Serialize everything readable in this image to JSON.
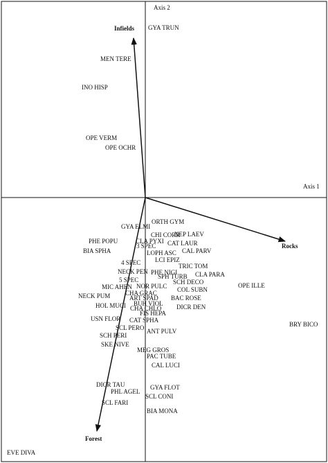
{
  "chart_data": {
    "type": "biplot",
    "x_label": "Axis 1",
    "y_label": "Axis 2",
    "xlim": [
      -2.08,
      2.62
    ],
    "ylim": [
      -3.81,
      2.83
    ],
    "labels": [
      "GYA TRUN",
      "MEN TERE",
      "INO HISP",
      "OPE VERM",
      "OPE OCHR",
      "ORTH GYM",
      "GYA ELMI",
      "CHI CORR",
      "NEP LAEV",
      "PHE POPU",
      "CLA PYXI",
      "CAT LAUR",
      "3 SPEC",
      "BIA SPHA",
      "CAL PARV",
      "LOPH ASC",
      "LCI EPIZ",
      "4 SPEC",
      "TRIC TOM",
      "NECK PEN",
      "PHE NIGI",
      "CLA PARA",
      "SPH TURB",
      "5 SPEC",
      "SCH DECO",
      "OPE ILLE",
      "MIC AHEN",
      "NOR PULC",
      "COL SUBN",
      "CHA GRAC",
      "NECK PUM",
      "ART SPAD",
      "BAC ROSE",
      "HOL MUCI",
      "BUH VIOL",
      "CHA CHLO",
      "DICR DEN",
      "FIS HEPA",
      "USN FLOR",
      "CAT SPHA",
      "SCL PERO",
      "ANT PULV",
      "BRY BICO",
      "SCH PERI",
      "SKE NIVE",
      "MEG GROS",
      "PAC TUBE",
      "CAL LUCI",
      "DICR TAU",
      "GYA FLOT",
      "PHL AGEL",
      "SCL CONI",
      "SCL FARI",
      "BIA MONA",
      "EVE DIVA"
    ],
    "x": [
      0.04,
      -0.65,
      -0.92,
      -0.86,
      -0.58,
      0.09,
      -0.35,
      0.08,
      0.42,
      -0.82,
      -0.14,
      0.32,
      -0.13,
      -0.9,
      0.53,
      0.02,
      0.14,
      -0.35,
      0.48,
      -0.4,
      0.08,
      0.72,
      0.18,
      -0.38,
      0.4,
      1.34,
      -0.63,
      -0.13,
      0.46,
      -0.29,
      -0.97,
      -0.23,
      0.37,
      -0.72,
      -0.17,
      -0.22,
      0.45,
      -0.08,
      -0.79,
      -0.23,
      -0.43,
      0.02,
      2.08,
      -0.66,
      -0.64,
      -0.12,
      0.02,
      0.09,
      -0.71,
      0.07,
      -0.5,
      0.0,
      -0.63,
      0.02,
      -2.0
    ],
    "y": [
      2.44,
      1.99,
      1.58,
      0.85,
      0.71,
      -0.36,
      -0.43,
      -0.55,
      -0.54,
      -0.64,
      -0.64,
      -0.67,
      -0.71,
      -0.78,
      -0.78,
      -0.81,
      -0.91,
      -0.95,
      -1.0,
      -1.08,
      -1.09,
      -1.12,
      -1.15,
      -1.2,
      -1.23,
      -1.28,
      -1.3,
      -1.29,
      -1.34,
      -1.39,
      -1.43,
      -1.46,
      -1.46,
      -1.57,
      -1.54,
      -1.61,
      -1.59,
      -1.68,
      -1.76,
      -1.78,
      -1.89,
      -1.94,
      -1.84,
      -2.0,
      -2.13,
      -2.21,
      -2.3,
      -2.43,
      -2.71,
      -2.75,
      -2.81,
      -2.88,
      -2.97,
      -3.09,
      -3.69
    ],
    "arrows": [
      {
        "name": "Infields",
        "x": -0.17,
        "y": 2.3
      },
      {
        "name": "Rocks",
        "x": 2.02,
        "y": -0.63
      },
      {
        "name": "Forest",
        "x": -0.7,
        "y": -3.37
      }
    ]
  }
}
